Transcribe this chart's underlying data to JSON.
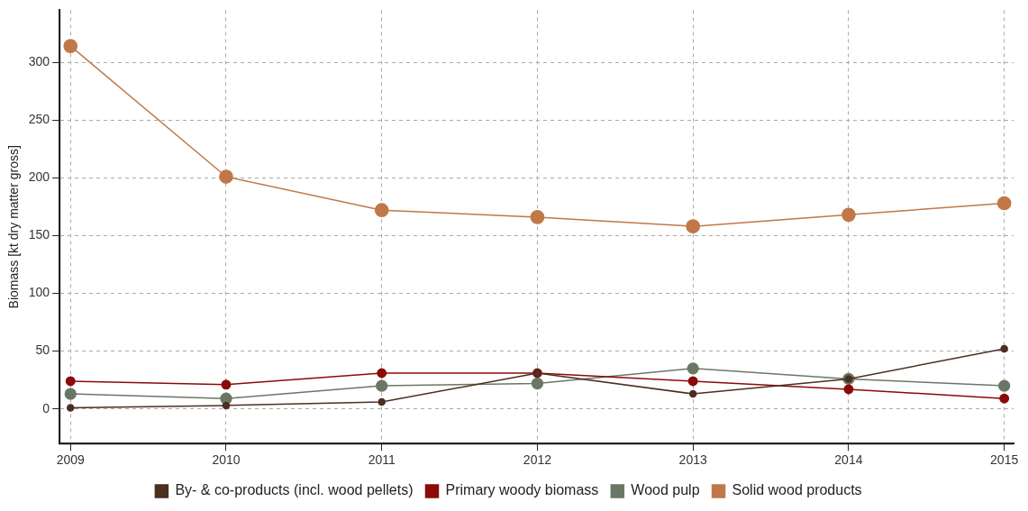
{
  "chart_data": {
    "type": "line",
    "ylabel": "Biomass [kt dry matter gross]",
    "x": [
      2009,
      2010,
      2011,
      2012,
      2013,
      2014,
      2015
    ],
    "xlim": [
      2008.93,
      2015.06
    ],
    "xticks": [
      2009,
      2010,
      2011,
      2012,
      2013,
      2014,
      2015
    ],
    "ylim": [
      -30,
      345
    ],
    "yticks": [
      0,
      50,
      100,
      150,
      200,
      250,
      300
    ],
    "series": [
      {
        "name": "By- & co-products (incl. wood pellets)",
        "color": "#4a2f22",
        "values": [
          1,
          3,
          6,
          31,
          13,
          26,
          52
        ]
      },
      {
        "name": "Primary woody biomass",
        "color": "#8b0a0a",
        "values": [
          24,
          21,
          31,
          31,
          24,
          17,
          9
        ]
      },
      {
        "name": "Wood pulp",
        "color": "#6b7765",
        "values": [
          13,
          9,
          20,
          22,
          35,
          26,
          20
        ]
      },
      {
        "name": "Solid wood products",
        "color": "#c07848",
        "values": [
          314,
          201,
          172,
          166,
          158,
          168,
          178
        ]
      }
    ],
    "grid": true,
    "legend": "bottom",
    "marker": "circle",
    "line_style": "solid"
  }
}
